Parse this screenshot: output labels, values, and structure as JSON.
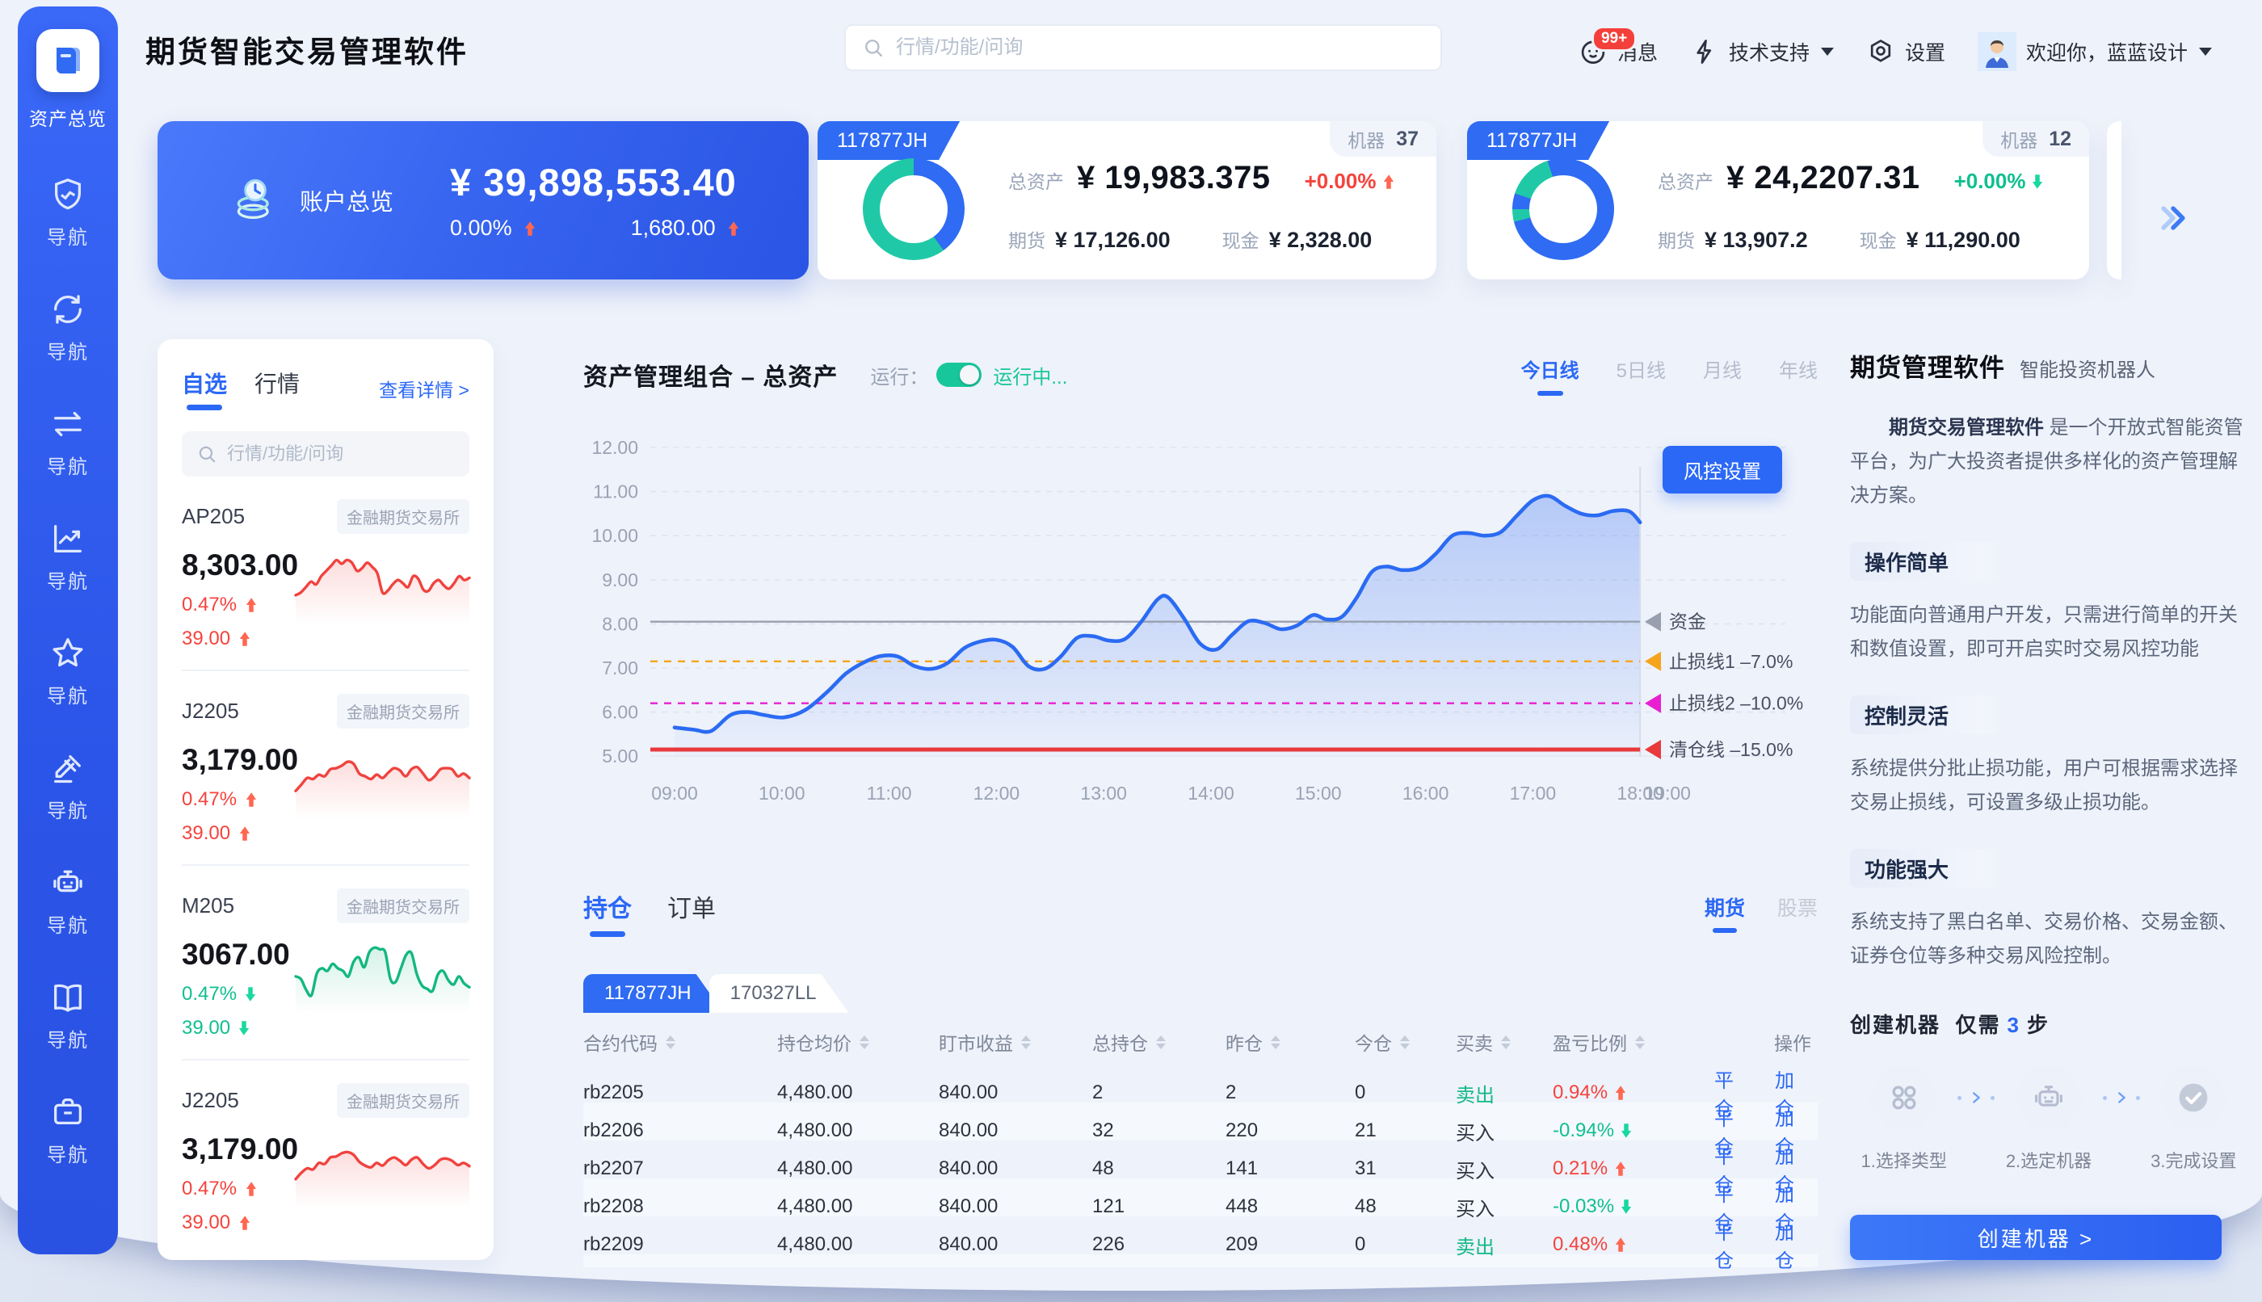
{
  "app": {
    "title": "期货智能交易管理软件"
  },
  "header": {
    "search_placeholder": "行情/功能/问询",
    "messages": {
      "label": "消息",
      "badge": "99+"
    },
    "support": {
      "label": "技术支持"
    },
    "settings": {
      "label": "设置"
    },
    "user": {
      "welcome": "欢迎你，蓝蓝设计"
    }
  },
  "sidebar": {
    "overview": {
      "label": "资产总览",
      "icon": "assets-overview"
    },
    "nav_items": [
      {
        "icon": "shield-chart",
        "label": "导航"
      },
      {
        "icon": "sync",
        "label": "导航"
      },
      {
        "icon": "transfer",
        "label": "导航"
      },
      {
        "icon": "trend-chart",
        "label": "导航"
      },
      {
        "icon": "star",
        "label": "导航"
      },
      {
        "icon": "gavel",
        "label": "导航"
      },
      {
        "icon": "robot",
        "label": "导航"
      },
      {
        "icon": "book",
        "label": "导航"
      },
      {
        "icon": "briefcase",
        "label": "导航"
      }
    ]
  },
  "account_card": {
    "title": "账户总览",
    "total": "¥ 39,898,553.40",
    "percent": "0.00%",
    "percent_trend": "up",
    "delta": "1,680.00",
    "delta_trend": "up"
  },
  "machine_cards": [
    {
      "tag": "117877JH",
      "machine_label": "机器",
      "machine_count": "37",
      "donut_segments": [
        {
          "color": "#2f6bf3",
          "pct": 40
        },
        {
          "color": "#1fc9a7",
          "pct": 60
        }
      ],
      "total_label": "总资产",
      "total_value": "¥ 19,983.375",
      "percent": "+0.00%",
      "percent_trend": "up",
      "futures_label": "期货",
      "futures_value": "¥ 17,126.00",
      "cash_label": "现金",
      "cash_value": "¥ 2,328.00"
    },
    {
      "tag": "117877JH",
      "machine_label": "机器",
      "machine_count": "12",
      "donut_segments": [
        {
          "color": "#2f6bf3",
          "pct": 71
        },
        {
          "color": "#1fc9a7",
          "pct": 4
        },
        {
          "color": "#2f6bf3",
          "pct": 5
        },
        {
          "color": "#1fc9a7",
          "pct": 15
        },
        {
          "color": "#2f6bf3",
          "pct": 5
        }
      ],
      "total_label": "总资产",
      "total_value": "¥ 24,2207.31",
      "percent": "+0.00%",
      "percent_trend": "down",
      "futures_label": "期货",
      "futures_value": "¥ 13,907.2",
      "cash_label": "现金",
      "cash_value": "¥ 11,290.00"
    }
  ],
  "watchlist": {
    "tabs": [
      {
        "label": "自选",
        "active": true
      },
      {
        "label": "行情",
        "active": false
      }
    ],
    "detail_link": "查看详情 >",
    "search_placeholder": "行情/功能/问询",
    "items": [
      {
        "code": "AP205",
        "exchange": "金融期货交易所",
        "price": "8,303.00",
        "percent": "0.47%",
        "change": "39.00",
        "trend": "up",
        "spark": [
          0.3,
          0.35,
          0.45,
          0.55,
          0.5,
          0.65,
          0.75,
          0.85,
          0.95,
          0.88,
          0.95,
          0.9,
          0.75,
          0.8,
          0.9,
          0.82,
          0.7,
          0.35,
          0.38,
          0.5,
          0.58,
          0.52,
          0.45,
          0.65,
          0.6,
          0.4,
          0.38,
          0.52,
          0.58,
          0.48,
          0.42,
          0.52,
          0.65,
          0.58,
          0.62
        ]
      },
      {
        "code": "J2205",
        "exchange": "金融期货交易所",
        "price": "3,179.00",
        "percent": "0.47%",
        "change": "39.00",
        "trend": "up",
        "spark": [
          0.28,
          0.4,
          0.52,
          0.5,
          0.58,
          0.55,
          0.68,
          0.7,
          0.75,
          0.82,
          0.78,
          0.6,
          0.55,
          0.5,
          0.58,
          0.52,
          0.62,
          0.7,
          0.66,
          0.55,
          0.68,
          0.72,
          0.6,
          0.48,
          0.55,
          0.68,
          0.7,
          0.68,
          0.55,
          0.6,
          0.52
        ]
      },
      {
        "code": "M205",
        "exchange": "金融期货交易所",
        "price": "3067.00",
        "percent": "0.47%",
        "change": "39.00",
        "trend": "down",
        "spark": [
          0.45,
          0.4,
          0.2,
          0.1,
          0.5,
          0.6,
          0.55,
          0.68,
          0.6,
          0.55,
          0.45,
          0.72,
          0.8,
          0.62,
          0.9,
          0.98,
          0.95,
          0.9,
          0.4,
          0.35,
          0.6,
          0.85,
          0.88,
          0.5,
          0.28,
          0.22,
          0.18,
          0.48,
          0.55,
          0.38,
          0.3,
          0.45,
          0.32,
          0.25
        ]
      },
      {
        "code": "J2205",
        "exchange": "金融期货交易所",
        "price": "3,179.00",
        "percent": "0.47%",
        "change": "39.00",
        "trend": "up",
        "spark": [
          0.3,
          0.42,
          0.5,
          0.48,
          0.6,
          0.58,
          0.7,
          0.72,
          0.78,
          0.8,
          0.75,
          0.62,
          0.55,
          0.52,
          0.6,
          0.55,
          0.65,
          0.7,
          0.64,
          0.56,
          0.66,
          0.7,
          0.58,
          0.5,
          0.56,
          0.66,
          0.68,
          0.64,
          0.56,
          0.6,
          0.54
        ]
      }
    ]
  },
  "portfolio": {
    "title": "资产管理组合 – 总资产",
    "run_label": "运行：",
    "run_status": "运行中...",
    "risk_button": "风控设置",
    "period_tabs": [
      {
        "label": "今日线",
        "active": true
      },
      {
        "label": "5日线",
        "active": false
      },
      {
        "label": "月线",
        "active": false
      },
      {
        "label": "年线",
        "active": false
      }
    ]
  },
  "chart_data": {
    "type": "area",
    "title": "资产管理组合 – 总资产",
    "xlabel": "",
    "ylabel": "",
    "ylim": [
      5,
      12
    ],
    "grid": true,
    "legend_position": "right",
    "x_ticks": [
      "09:00",
      "10:00",
      "11:00",
      "12:00",
      "13:00",
      "14:00",
      "15:00",
      "16:00",
      "17:00",
      "18:00",
      "19:00"
    ],
    "y_ticks": [
      12.0,
      11.0,
      10.0,
      9.0,
      8.0,
      7.0,
      6.0,
      5.0
    ],
    "series": [
      {
        "name": "资金",
        "color": "#2b6bf3",
        "points": [
          [
            0,
            5.65
          ],
          [
            0.18,
            5.6
          ],
          [
            0.34,
            5.57
          ],
          [
            0.52,
            5.93
          ],
          [
            0.68,
            6.0
          ],
          [
            0.84,
            5.93
          ],
          [
            1.02,
            5.88
          ],
          [
            1.22,
            6.05
          ],
          [
            1.42,
            6.45
          ],
          [
            1.6,
            6.88
          ],
          [
            1.76,
            7.12
          ],
          [
            1.92,
            7.27
          ],
          [
            2.08,
            7.26
          ],
          [
            2.24,
            7.04
          ],
          [
            2.4,
            6.98
          ],
          [
            2.55,
            7.12
          ],
          [
            2.7,
            7.45
          ],
          [
            2.85,
            7.6
          ],
          [
            3.0,
            7.64
          ],
          [
            3.15,
            7.48
          ],
          [
            3.3,
            7.04
          ],
          [
            3.45,
            6.98
          ],
          [
            3.6,
            7.26
          ],
          [
            3.75,
            7.68
          ],
          [
            3.9,
            7.72
          ],
          [
            4.05,
            7.62
          ],
          [
            4.2,
            7.66
          ],
          [
            4.35,
            8.05
          ],
          [
            4.5,
            8.55
          ],
          [
            4.6,
            8.6
          ],
          [
            4.75,
            8.12
          ],
          [
            4.9,
            7.55
          ],
          [
            5.05,
            7.42
          ],
          [
            5.2,
            7.76
          ],
          [
            5.35,
            8.06
          ],
          [
            5.5,
            8.02
          ],
          [
            5.65,
            7.88
          ],
          [
            5.8,
            7.96
          ],
          [
            5.95,
            8.2
          ],
          [
            6.08,
            8.1
          ],
          [
            6.22,
            8.16
          ],
          [
            6.36,
            8.6
          ],
          [
            6.5,
            9.18
          ],
          [
            6.64,
            9.3
          ],
          [
            6.78,
            9.22
          ],
          [
            6.94,
            9.28
          ],
          [
            7.1,
            9.6
          ],
          [
            7.25,
            10.0
          ],
          [
            7.4,
            10.06
          ],
          [
            7.55,
            10.0
          ],
          [
            7.7,
            10.08
          ],
          [
            7.85,
            10.45
          ],
          [
            8.0,
            10.8
          ],
          [
            8.15,
            10.9
          ],
          [
            8.3,
            10.68
          ],
          [
            8.45,
            10.5
          ],
          [
            8.6,
            10.46
          ],
          [
            8.75,
            10.56
          ],
          [
            8.9,
            10.55
          ],
          [
            9.0,
            10.3
          ]
        ]
      }
    ],
    "ref_lines": [
      {
        "label": "资金",
        "value": 8.05,
        "color": "#98a0b0",
        "dash": false,
        "thick": false
      },
      {
        "label": "止损线1 –7.0%",
        "value": 7.15,
        "color": "#f5a41d",
        "dash": true,
        "thick": false
      },
      {
        "label": "止损线2 –10.0%",
        "value": 6.2,
        "color": "#e820d2",
        "dash": true,
        "thick": false
      },
      {
        "label": "清仓线 –15.0%",
        "value": 5.15,
        "color": "#e8393d",
        "dash": false,
        "thick": true
      }
    ]
  },
  "positions": {
    "tabs": [
      {
        "label": "持仓",
        "active": true
      },
      {
        "label": "订单",
        "active": false
      }
    ],
    "market_tabs": [
      {
        "label": "期货",
        "active": true
      },
      {
        "label": "股票",
        "active": false
      }
    ],
    "account_tabs": [
      {
        "label": "117877JH",
        "active": true
      },
      {
        "label": "170327LL",
        "active": false
      }
    ],
    "columns": [
      {
        "label": "合约代码",
        "sortable": true
      },
      {
        "label": "持仓均价",
        "sortable": true
      },
      {
        "label": "盯市收益",
        "sortable": true
      },
      {
        "label": "总持仓",
        "sortable": true
      },
      {
        "label": "昨仓",
        "sortable": true
      },
      {
        "label": "今仓",
        "sortable": true
      },
      {
        "label": "买卖",
        "sortable": true
      },
      {
        "label": "盈亏比例",
        "sortable": true
      },
      {
        "label": "操作",
        "sortable": false
      }
    ],
    "rows": [
      {
        "code": "rb2205",
        "avg_price": "4,480.00",
        "profit": "840.00",
        "total": "2",
        "yesterday": "2",
        "today": "0",
        "side": "卖出",
        "side_type": "sell",
        "ratio": "0.94%",
        "ratio_trend": "up"
      },
      {
        "code": "rb2206",
        "avg_price": "4,480.00",
        "profit": "840.00",
        "total": "32",
        "yesterday": "220",
        "today": "21",
        "side": "买入",
        "side_type": "buy",
        "ratio": "-0.94%",
        "ratio_trend": "down"
      },
      {
        "code": "rb2207",
        "avg_price": "4,480.00",
        "profit": "840.00",
        "total": "48",
        "yesterday": "141",
        "today": "31",
        "side": "买入",
        "side_type": "buy",
        "ratio": "0.21%",
        "ratio_trend": "up"
      },
      {
        "code": "rb2208",
        "avg_price": "4,480.00",
        "profit": "840.00",
        "total": "121",
        "yesterday": "448",
        "today": "48",
        "side": "买入",
        "side_type": "buy",
        "ratio": "-0.03%",
        "ratio_trend": "down"
      },
      {
        "code": "rb2209",
        "avg_price": "4,480.00",
        "profit": "840.00",
        "total": "226",
        "yesterday": "209",
        "today": "0",
        "side": "卖出",
        "side_type": "sell",
        "ratio": "0.48%",
        "ratio_trend": "up"
      }
    ],
    "actions": [
      "平仓",
      "加仓"
    ]
  },
  "promo": {
    "title": "期货管理软件",
    "subtitle": "智能投资机器人",
    "intro_highlight": "期货交易管理软件",
    "intro_rest": " 是一个开放式智能资管平台，为广大投资者提供多样化的资产管理解决方案。",
    "sections": [
      {
        "badge": "操作简单",
        "text": "功能面向普通用户开发，只需进行简单的开关和数值设置，即可开启实时交易风控功能"
      },
      {
        "badge": "控制灵活",
        "text": "系统提供分批止损功能，用户可根据需求选择交易止损线，可设置多级止损功能。"
      },
      {
        "badge": "功能强大",
        "text": "系统支持了黑白名单、交易价格、交易金额、证券仓位等多种交易风险控制。"
      }
    ],
    "create_line": {
      "prefix": "创建机器",
      "mid": "仅需",
      "count": "3",
      "suffix": "步"
    },
    "steps": [
      {
        "icon": "type-grid",
        "label": "1.选择类型"
      },
      {
        "icon": "robot",
        "label": "2.选定机器"
      },
      {
        "icon": "check-circle",
        "label": "3.完成设置"
      }
    ],
    "create_button": "创建机器 >"
  }
}
